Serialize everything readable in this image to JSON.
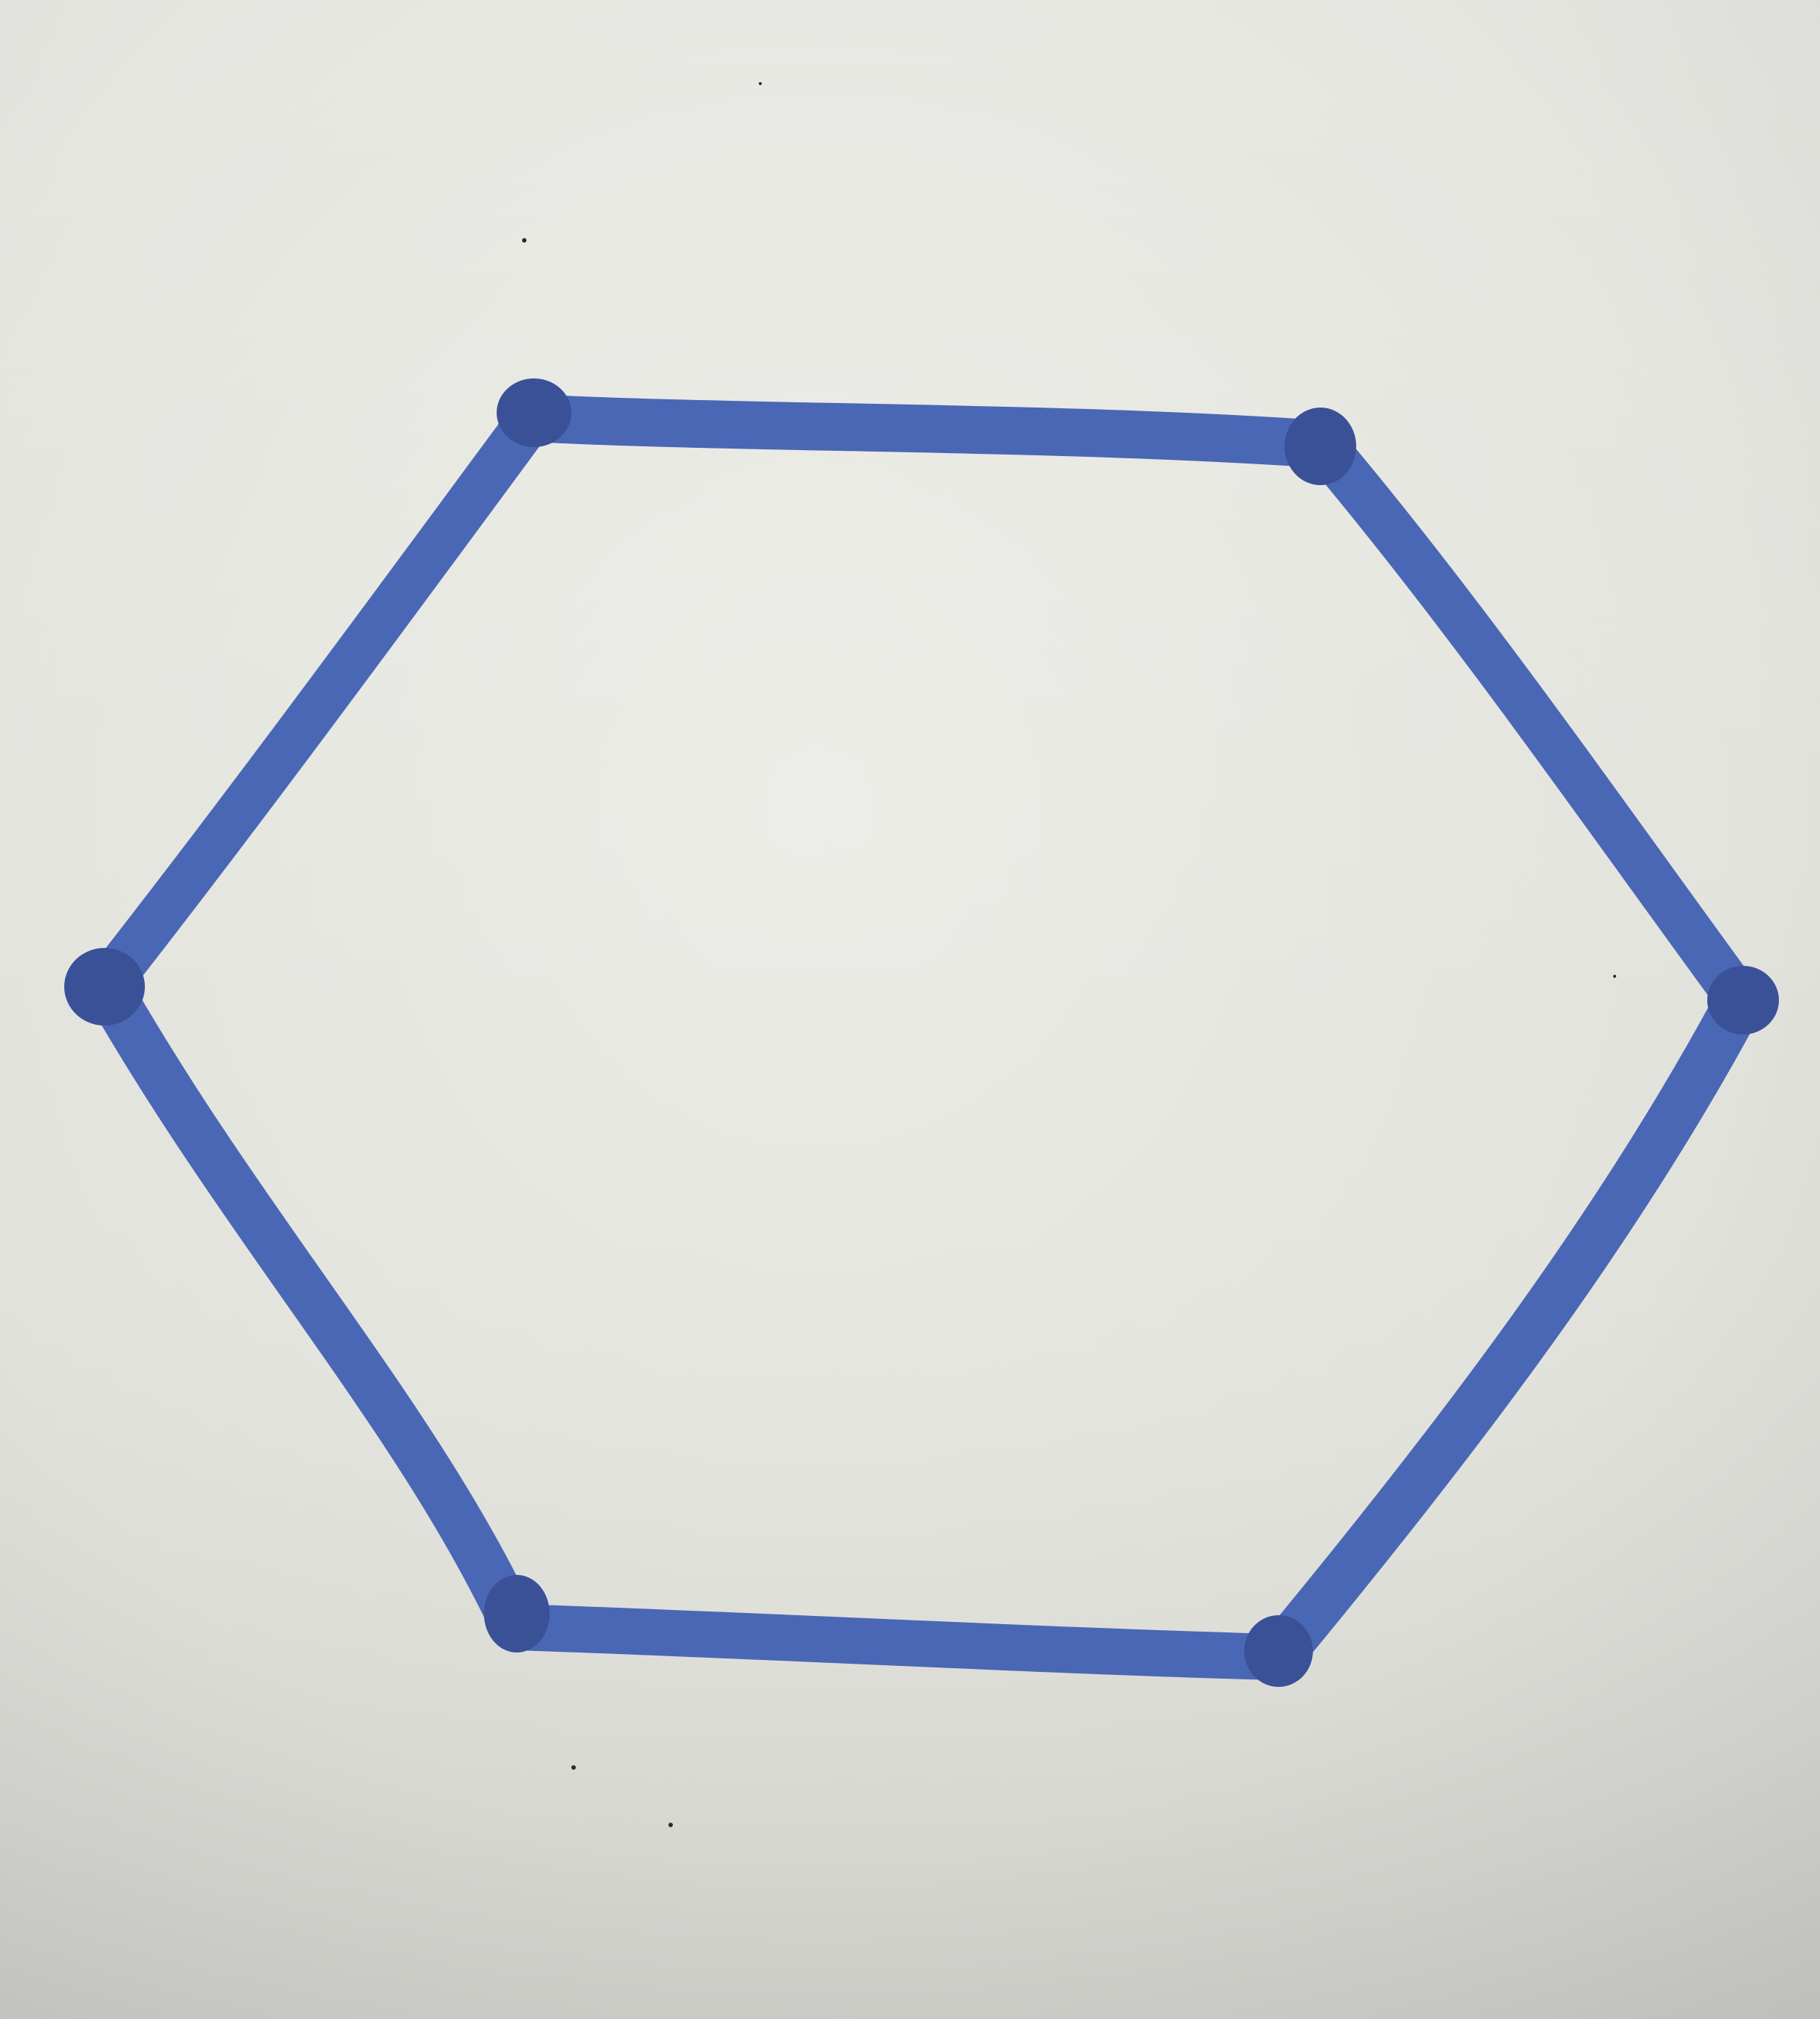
{
  "photo": {
    "paper_color": "#e8e8e2",
    "paper_shadow_color": "#cfd0cc",
    "ink_color": "#4a67b5",
    "ink_dark_color": "#3a5197",
    "stray_mark_color": "#2b2b2b"
  },
  "drawing": {
    "shape": "hexagon",
    "vertex_count": 6
  }
}
